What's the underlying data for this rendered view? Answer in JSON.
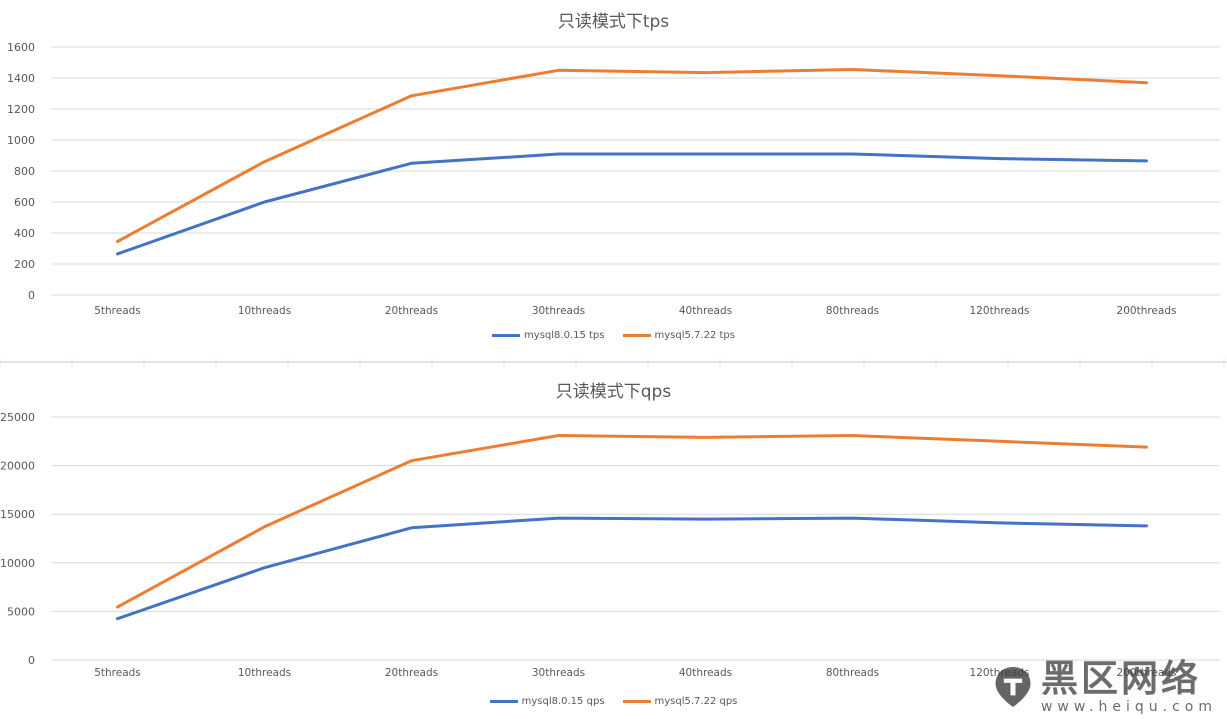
{
  "colors": {
    "series1": "#4472C4",
    "series2": "#ED7D31",
    "gridline": "#D9D9D9",
    "axis_text": "#595959"
  },
  "chart_data": [
    {
      "type": "line",
      "title": "只读模式下tps",
      "categories": [
        "5threads",
        "10threads",
        "20threads",
        "30threads",
        "40threads",
        "80threads",
        "120threads",
        "200threads"
      ],
      "ylim": [
        0,
        1600
      ],
      "yticks": [
        0,
        200,
        400,
        600,
        800,
        1000,
        1200,
        1400,
        1600
      ],
      "grid": true,
      "legend_position": "bottom",
      "series": [
        {
          "name": "mysql8.0.15 tps",
          "values": [
            265,
            600,
            850,
            910,
            910,
            910,
            880,
            865
          ]
        },
        {
          "name": "mysql5.7.22 tps",
          "values": [
            345,
            860,
            1285,
            1450,
            1435,
            1455,
            1415,
            1370
          ]
        }
      ]
    },
    {
      "type": "line",
      "title": "只读模式下qps",
      "categories": [
        "5threads",
        "10threads",
        "20threads",
        "30threads",
        "40threads",
        "80threads",
        "120threads",
        "200threads"
      ],
      "ylim": [
        0,
        25000
      ],
      "yticks": [
        0,
        5000,
        10000,
        15000,
        20000,
        25000
      ],
      "grid": true,
      "legend_position": "bottom",
      "series": [
        {
          "name": "mysql8.0.15 qps",
          "values": [
            4250,
            9500,
            13600,
            14600,
            14500,
            14600,
            14100,
            13800
          ]
        },
        {
          "name": "mysql5.7.22 qps",
          "values": [
            5450,
            13700,
            20500,
            23100,
            22900,
            23100,
            22500,
            21900
          ]
        }
      ]
    }
  ],
  "watermark": {
    "cn": "黑区网络",
    "en": "www.heiqu.com",
    "logo_icon": "pin-logo-icon"
  }
}
